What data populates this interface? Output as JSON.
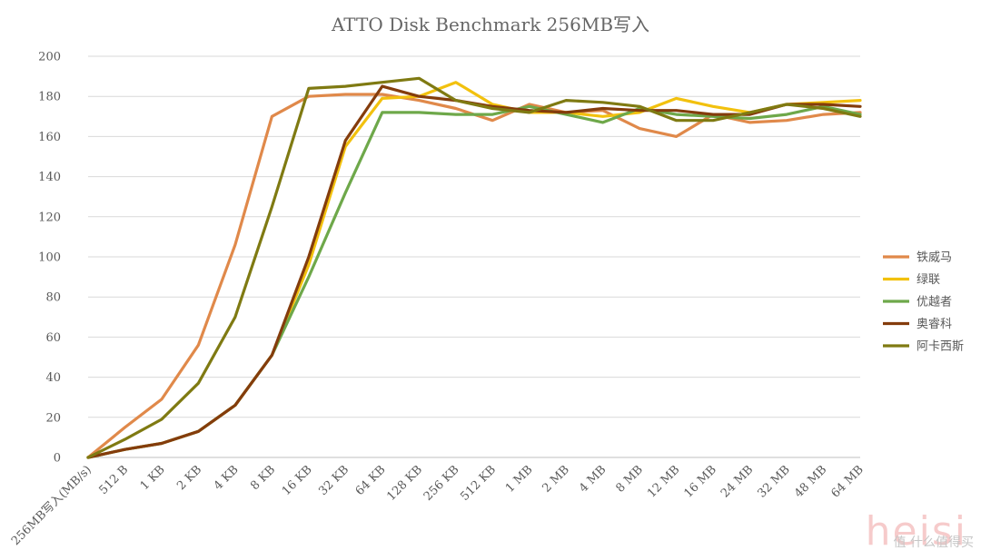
{
  "chart_data": {
    "type": "line",
    "title": "ATTO Disk Benchmark 256MB写入",
    "xlabel": "",
    "ylabel": "",
    "ylim": [
      0,
      200
    ],
    "yticks": [
      0,
      20,
      40,
      60,
      80,
      100,
      120,
      140,
      160,
      180,
      200
    ],
    "grid": true,
    "legend_position": "right",
    "categories": [
      "256MB写入(MB/s)",
      "512 B",
      "1 KB",
      "2 KB",
      "4 KB",
      "8 KB",
      "16 KB",
      "32 KB",
      "64 KB",
      "128 KB",
      "256 KB",
      "512 KB",
      "1 MB",
      "2 MB",
      "4 MB",
      "8 MB",
      "12 MB",
      "16 MB",
      "24 MB",
      "32 MB",
      "48 MB",
      "64 MB"
    ],
    "series": [
      {
        "name": "铁威马",
        "color": "#e0894a",
        "values": [
          0,
          15,
          29,
          56,
          106,
          170,
          180,
          181,
          181,
          178,
          174,
          168,
          176,
          172,
          173,
          164,
          160,
          171,
          167,
          168,
          171,
          172
        ]
      },
      {
        "name": "绿联",
        "color": "#f2c10e",
        "values": [
          0,
          4,
          7,
          13,
          26,
          51,
          96,
          155,
          179,
          180,
          187,
          176,
          172,
          172,
          170,
          172,
          179,
          175,
          172,
          176,
          177,
          178
        ]
      },
      {
        "name": "优越者",
        "color": "#6ea84a",
        "values": [
          0,
          4,
          7,
          13,
          26,
          51,
          90,
          132,
          172,
          172,
          171,
          171,
          175,
          171,
          167,
          174,
          171,
          170,
          169,
          171,
          175,
          171
        ]
      },
      {
        "name": "奥睿科",
        "color": "#843c0c",
        "values": [
          0,
          4,
          7,
          13,
          26,
          51,
          100,
          158,
          185,
          180,
          178,
          175,
          173,
          172,
          174,
          173,
          173,
          171,
          171,
          176,
          176,
          175
        ]
      },
      {
        "name": "阿卡西斯",
        "color": "#7f7a12",
        "values": [
          0,
          9,
          19,
          37,
          70,
          125,
          184,
          185,
          187,
          189,
          178,
          174,
          172,
          178,
          177,
          175,
          168,
          168,
          172,
          176,
          174,
          170
        ]
      }
    ]
  },
  "watermark": {
    "logo_text": "heisi",
    "site_text": "值 什么值得买"
  }
}
